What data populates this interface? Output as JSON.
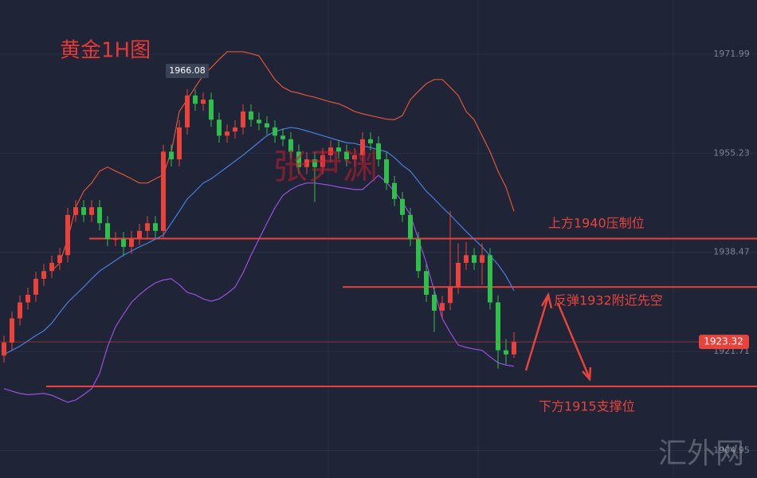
{
  "chart_data": {
    "type": "candlestick",
    "title": "黄金1H图",
    "watermark": "张尹渊",
    "site_mark": "汇外网",
    "up_color": "#e8433b",
    "down_color": "#2fbf4a",
    "open": [
      1921.0,
      1923.2,
      1927.3,
      1930.0,
      1931.3,
      1934.0,
      1935.3,
      1936.7,
      1938.0,
      1944.8,
      1946.1,
      1944.8,
      1946.1,
      1943.4,
      1940.7,
      1940.7,
      1939.4,
      1940.9,
      1942.1,
      1943.4,
      1942.1,
      1955.5,
      1954.2,
      1959.6,
      1965.0,
      1963.6,
      1964.3,
      1960.9,
      1958.2,
      1958.9,
      1959.6,
      1962.3,
      1960.9,
      1960.3,
      1959.6,
      1958.2,
      1957.6,
      1955.5,
      1952.9,
      1954.2,
      1952.9,
      1954.9,
      1956.2,
      1955.5,
      1954.2,
      1954.9,
      1957.6,
      1956.9,
      1954.2,
      1950.2,
      1947.5,
      1944.8,
      1940.7,
      1935.3,
      1931.3,
      1928.6,
      1929.9,
      1932.6,
      1936.7,
      1938.0,
      1936.7,
      1938.0,
      1930.0,
      1921.9,
      1921.2
    ],
    "high": [
      1924.4,
      1928.5,
      1931.2,
      1932.5,
      1935.2,
      1936.5,
      1937.9,
      1939.2,
      1946.0,
      1947.3,
      1947.3,
      1947.3,
      1947.3,
      1944.6,
      1941.9,
      1941.9,
      1942.1,
      1943.3,
      1944.6,
      1944.6,
      1956.7,
      1956.7,
      1960.8,
      1966.08,
      1966.0,
      1965.5,
      1965.5,
      1962.1,
      1960.1,
      1960.8,
      1963.5,
      1963.5,
      1962.1,
      1961.5,
      1960.8,
      1959.4,
      1958.8,
      1956.7,
      1955.4,
      1955.4,
      1956.1,
      1957.4,
      1957.4,
      1956.7,
      1956.1,
      1958.8,
      1958.8,
      1958.1,
      1955.4,
      1951.4,
      1948.7,
      1946.0,
      1941.9,
      1936.5,
      1932.5,
      1931.1,
      1945.5,
      1940.0,
      1940.2,
      1939.2,
      1940.0,
      1939.2,
      1931.2,
      1923.8,
      1925.0
    ],
    "low": [
      1919.8,
      1922.0,
      1926.1,
      1928.8,
      1930.1,
      1932.8,
      1934.1,
      1935.5,
      1936.8,
      1943.6,
      1943.6,
      1943.6,
      1942.2,
      1939.5,
      1939.5,
      1937.8,
      1938.2,
      1939.7,
      1940.9,
      1940.9,
      1940.9,
      1953.0,
      1953.0,
      1958.4,
      1962.4,
      1962.4,
      1959.7,
      1957.0,
      1957.0,
      1957.7,
      1958.4,
      1959.7,
      1959.1,
      1958.4,
      1957.0,
      1956.4,
      1954.3,
      1951.7,
      1951.7,
      1947.0,
      1951.7,
      1953.7,
      1954.3,
      1953.0,
      1953.0,
      1953.7,
      1955.7,
      1953.0,
      1949.0,
      1946.3,
      1943.6,
      1939.5,
      1934.1,
      1930.1,
      1925.0,
      1927.4,
      1928.7,
      1931.4,
      1935.5,
      1935.5,
      1933.0,
      1928.8,
      1918.8,
      1919.5,
      1920.6
    ],
    "close": [
      1923.2,
      1927.3,
      1930.0,
      1931.3,
      1934.0,
      1935.3,
      1936.7,
      1938.0,
      1944.8,
      1946.1,
      1944.8,
      1946.1,
      1943.4,
      1940.7,
      1940.7,
      1939.4,
      1940.9,
      1942.1,
      1943.4,
      1942.1,
      1955.5,
      1954.2,
      1959.6,
      1965.0,
      1963.6,
      1964.3,
      1960.9,
      1958.2,
      1958.9,
      1959.6,
      1962.3,
      1960.9,
      1960.3,
      1959.6,
      1958.2,
      1957.6,
      1955.5,
      1952.9,
      1954.2,
      1952.9,
      1954.9,
      1956.2,
      1955.5,
      1954.2,
      1954.9,
      1957.6,
      1956.9,
      1954.2,
      1950.2,
      1947.5,
      1944.8,
      1940.7,
      1935.3,
      1931.3,
      1928.6,
      1929.9,
      1932.6,
      1936.7,
      1938.0,
      1936.7,
      1938.0,
      1930.0,
      1921.9,
      1921.2,
      1923.32
    ],
    "bands": [
      {
        "color": "#e0553a",
        "values": [
          null,
          null,
          null,
          null,
          null,
          null,
          1935.3,
          1936.7,
          1940.7,
          1946.1,
          1948.8,
          1950.2,
          1952.2,
          1952.9,
          1952.2,
          1951.6,
          1950.9,
          1950.2,
          1950.2,
          1950.9,
          1951.6,
          1955.5,
          1962.3,
          1964.3,
          1966.4,
          1968.4,
          1969.7,
          1971.1,
          1972.4,
          1972.4,
          1972.4,
          1972.1,
          1971.7,
          1969.7,
          1967.7,
          1966.4,
          1965.7,
          1965.4,
          1965.0,
          1964.7,
          1964.3,
          1963.9,
          1963.6,
          1963.0,
          1962.3,
          1961.9,
          1961.6,
          1961.3,
          1961.0,
          1960.9,
          1961.6,
          1964.3,
          1965.7,
          1967.0,
          1967.7,
          1967.7,
          1966.4,
          1965.0,
          1962.3,
          1960.9,
          1958.2,
          1955.5,
          1952.2,
          1949.5,
          1945.4
        ]
      },
      {
        "color": "#4a7fe0",
        "values": [
          1921.2,
          1921.9,
          1922.6,
          1923.5,
          1924.4,
          1925.2,
          1926.5,
          1928.3,
          1930.0,
          1931.3,
          1932.6,
          1934.0,
          1935.3,
          1936.2,
          1937.1,
          1938.0,
          1938.7,
          1939.4,
          1940.0,
          1940.7,
          1941.4,
          1943.4,
          1945.4,
          1947.5,
          1948.8,
          1950.2,
          1950.9,
          1951.9,
          1952.9,
          1953.9,
          1954.9,
          1956.0,
          1957.1,
          1958.2,
          1958.9,
          1959.3,
          1959.6,
          1959.4,
          1959.0,
          1958.6,
          1958.2,
          1957.8,
          1957.4,
          1957.0,
          1956.9,
          1956.5,
          1956.2,
          1955.8,
          1955.5,
          1954.5,
          1953.2,
          1952.2,
          1950.5,
          1948.8,
          1947.5,
          1946.1,
          1944.8,
          1943.4,
          1942.0,
          1940.7,
          1939.4,
          1937.9,
          1936.4,
          1934.5,
          1932.0
        ]
      },
      {
        "color": "#9b4fe0",
        "values": [
          1915.4,
          1915.0,
          1914.6,
          1914.4,
          1914.5,
          1914.6,
          1914.3,
          1913.7,
          1913.1,
          1913.5,
          1914.4,
          1915.4,
          1918.0,
          1922.5,
          1925.9,
          1928.0,
          1930.0,
          1931.3,
          1932.4,
          1933.3,
          1933.8,
          1934.0,
          1933.0,
          1931.7,
          1931.3,
          1930.6,
          1930.2,
          1930.6,
          1931.5,
          1932.6,
          1935.0,
          1938.0,
          1940.7,
          1943.4,
          1946.0,
          1948.1,
          1949.1,
          1949.8,
          1950.2,
          1950.2,
          1950.0,
          1949.8,
          1949.5,
          1949.3,
          1949.1,
          1949.1,
          1950.3,
          1951.5,
          1950.3,
          1948.8,
          1947.0,
          1944.8,
          1940.7,
          1936.7,
          1932.0,
          1927.3,
          1924.9,
          1922.8,
          1922.4,
          1922.1,
          1921.9,
          1920.8,
          1919.8,
          1919.4,
          1919.2
        ]
      }
    ],
    "levels": [
      {
        "value": 1940.8,
        "label": "上方1940压制位"
      },
      {
        "value": 1932.6,
        "label": "反弹1932附近先空"
      },
      {
        "value": 1915.8,
        "label": "下方1915支撑位"
      }
    ],
    "level_color": "#e8433b",
    "ylim": [
      1900.3,
      1981.15
    ],
    "yticks": [
      1971.99,
      1955.23,
      1938.47,
      1921.71,
      1904.95
    ],
    "grid": true
  }
}
